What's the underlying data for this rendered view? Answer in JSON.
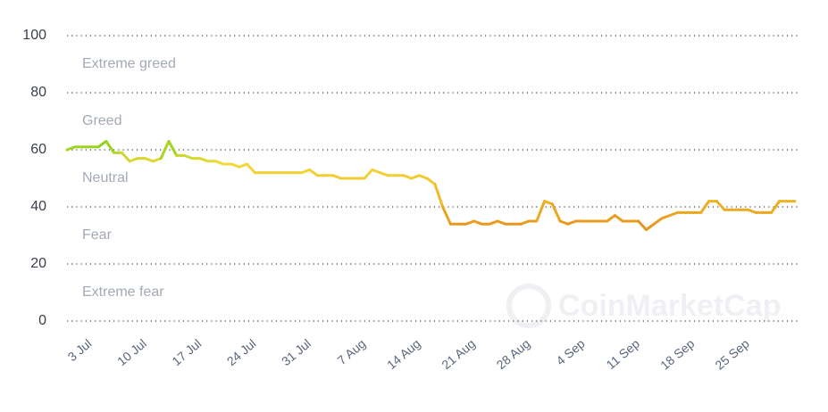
{
  "chart_data": {
    "type": "line",
    "watermark": "CoinMarketCap",
    "zone_labels": [
      {
        "label": "Extreme greed",
        "value": 90
      },
      {
        "label": "Greed",
        "value": 70
      },
      {
        "label": "Neutral",
        "value": 50
      },
      {
        "label": "Fear",
        "value": 30
      },
      {
        "label": "Extreme fear",
        "value": 10
      }
    ],
    "categories": [
      "30 Jun",
      "1 Jul",
      "2 Jul",
      "3 Jul",
      "4 Jul",
      "5 Jul",
      "6 Jul",
      "7 Jul",
      "8 Jul",
      "9 Jul",
      "10 Jul",
      "11 Jul",
      "12 Jul",
      "13 Jul",
      "14 Jul",
      "15 Jul",
      "16 Jul",
      "17 Jul",
      "18 Jul",
      "19 Jul",
      "20 Jul",
      "21 Jul",
      "22 Jul",
      "23 Jul",
      "24 Jul",
      "25 Jul",
      "26 Jul",
      "27 Jul",
      "28 Jul",
      "29 Jul",
      "30 Jul",
      "31 Jul",
      "1 Aug",
      "2 Aug",
      "3 Aug",
      "4 Aug",
      "5 Aug",
      "6 Aug",
      "7 Aug",
      "8 Aug",
      "9 Aug",
      "10 Aug",
      "11 Aug",
      "12 Aug",
      "13 Aug",
      "14 Aug",
      "15 Aug",
      "16 Aug",
      "17 Aug",
      "18 Aug",
      "19 Aug",
      "20 Aug",
      "21 Aug",
      "22 Aug",
      "23 Aug",
      "24 Aug",
      "25 Aug",
      "26 Aug",
      "27 Aug",
      "28 Aug",
      "29 Aug",
      "30 Aug",
      "31 Aug",
      "1 Sep",
      "2 Sep",
      "3 Sep",
      "4 Sep",
      "5 Sep",
      "6 Sep",
      "7 Sep",
      "8 Sep",
      "9 Sep",
      "10 Sep",
      "11 Sep",
      "12 Sep",
      "13 Sep",
      "14 Sep",
      "15 Sep",
      "16 Sep",
      "17 Sep",
      "18 Sep",
      "19 Sep",
      "20 Sep",
      "21 Sep",
      "22 Sep",
      "23 Sep",
      "24 Sep",
      "25 Sep",
      "26 Sep",
      "27 Sep",
      "28 Sep",
      "29 Sep",
      "30 Sep",
      "1 Oct"
    ],
    "values": [
      60,
      61,
      61,
      61,
      61,
      63,
      59,
      59,
      56,
      57,
      57,
      56,
      57,
      63,
      58,
      58,
      57,
      57,
      56,
      56,
      55,
      55,
      54,
      55,
      52,
      52,
      52,
      52,
      52,
      52,
      52,
      53,
      51,
      51,
      51,
      50,
      50,
      50,
      50,
      53,
      52,
      51,
      51,
      51,
      50,
      51,
      50,
      48,
      40,
      34,
      34,
      34,
      35,
      34,
      34,
      35,
      34,
      34,
      34,
      35,
      35,
      42,
      41,
      35,
      34,
      35,
      35,
      35,
      35,
      35,
      37,
      35,
      35,
      35,
      32,
      34,
      36,
      37,
      38,
      38,
      38,
      38,
      42,
      42,
      39,
      39,
      39,
      39,
      38,
      38,
      38,
      42,
      42,
      42
    ],
    "xtick_indices": [
      3,
      10,
      17,
      24,
      31,
      38,
      45,
      52,
      59,
      66,
      73,
      80,
      87
    ],
    "color_stops": [
      {
        "value": 30,
        "color": "#e6891a"
      },
      {
        "value": 42,
        "color": "#edb526"
      },
      {
        "value": 55,
        "color": "#f2da3a"
      },
      {
        "value": 62,
        "color": "#8fd21b"
      }
    ],
    "ylim": [
      0,
      100
    ],
    "yticks": [
      0,
      20,
      40,
      60,
      80,
      100
    ],
    "grid": true
  }
}
